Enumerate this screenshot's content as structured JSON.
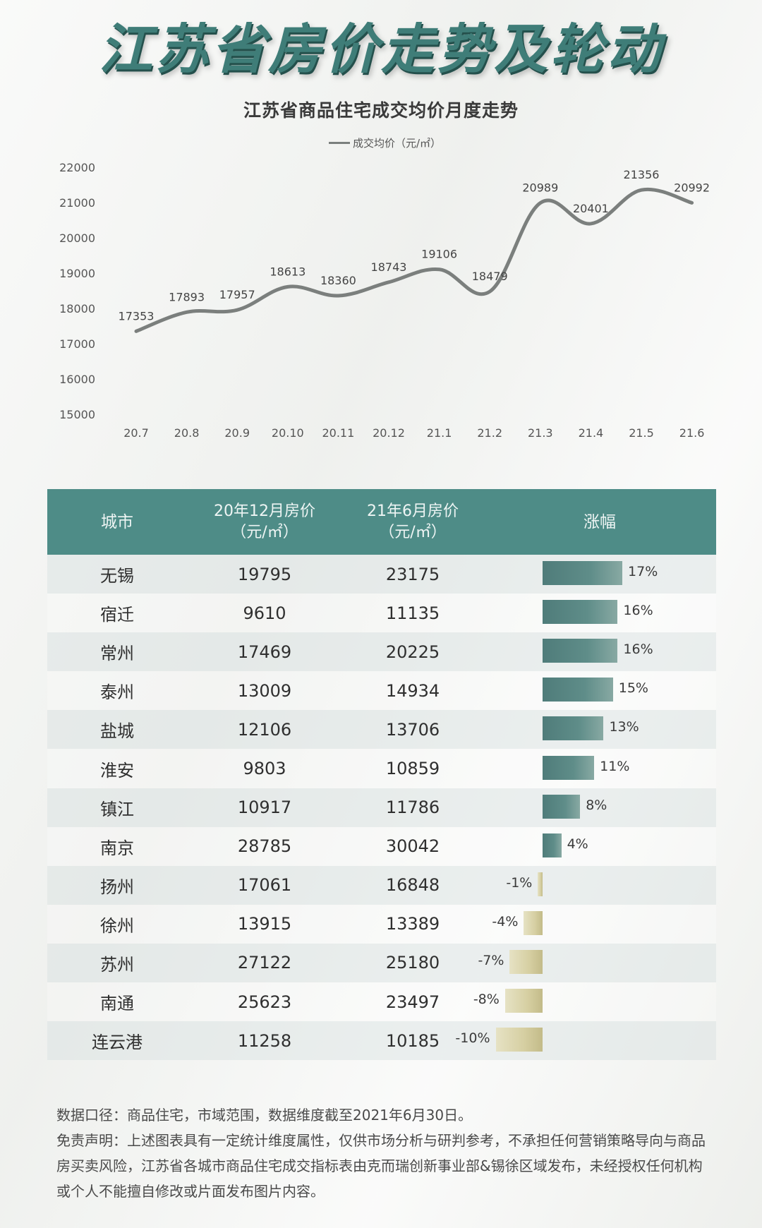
{
  "main_title": "江苏省房价走势及轮动",
  "chart_data": {
    "type": "line",
    "title": "江苏省商品住宅成交均价月度走势",
    "series": [
      {
        "name": "成交均价（元/㎡）",
        "values": [
          17353,
          17893,
          17957,
          18613,
          18360,
          18743,
          19106,
          18479,
          20989,
          20401,
          21356,
          20992
        ]
      }
    ],
    "categories": [
      "20.7",
      "20.8",
      "20.9",
      "20.10",
      "20.11",
      "20.12",
      "21.1",
      "21.2",
      "21.3",
      "21.4",
      "21.5",
      "21.6"
    ],
    "y_ticks": [
      "22000",
      "21000",
      "20000",
      "19000",
      "18000",
      "17000",
      "16000",
      "15000"
    ],
    "ylim": [
      15000,
      22000
    ],
    "grid": false,
    "legend_position": "top-center",
    "line_color": "#7b7f7d"
  },
  "table": {
    "headers": {
      "city": "城市",
      "dec20": "20年12月房价",
      "dec20_unit": "（元/㎡）",
      "jun21": "21年6月房价",
      "jun21_unit": "（元/㎡）",
      "rise": "涨幅"
    },
    "rows": [
      {
        "city": "无锡",
        "dec20": "19795",
        "jun21": "23175",
        "pct": "17%",
        "rise": 17
      },
      {
        "city": "宿迁",
        "dec20": "9610",
        "jun21": "11135",
        "pct": "16%",
        "rise": 16
      },
      {
        "city": "常州",
        "dec20": "17469",
        "jun21": "20225",
        "pct": "16%",
        "rise": 16
      },
      {
        "city": "泰州",
        "dec20": "13009",
        "jun21": "14934",
        "pct": "15%",
        "rise": 15
      },
      {
        "city": "盐城",
        "dec20": "12106",
        "jun21": "13706",
        "pct": "13%",
        "rise": 13
      },
      {
        "city": "淮安",
        "dec20": "9803",
        "jun21": "10859",
        "pct": "11%",
        "rise": 11
      },
      {
        "city": "镇江",
        "dec20": "10917",
        "jun21": "11786",
        "pct": "8%",
        "rise": 8
      },
      {
        "city": "南京",
        "dec20": "28785",
        "jun21": "30042",
        "pct": "4%",
        "rise": 4
      },
      {
        "city": "扬州",
        "dec20": "17061",
        "jun21": "16848",
        "pct": "-1%",
        "rise": -1
      },
      {
        "city": "徐州",
        "dec20": "13915",
        "jun21": "13389",
        "pct": "-4%",
        "rise": -4
      },
      {
        "city": "苏州",
        "dec20": "27122",
        "jun21": "25180",
        "pct": "-7%",
        "rise": -7
      },
      {
        "city": "南通",
        "dec20": "25623",
        "jun21": "23497",
        "pct": "-8%",
        "rise": -8
      },
      {
        "city": "连云港",
        "dec20": "11258",
        "jun21": "10185",
        "pct": "-10%",
        "rise": -10
      }
    ],
    "header_color": "#4e8c87",
    "positive_bar_color": "#5f8d89",
    "negative_bar_color": "#d6cfa2"
  },
  "notes": {
    "line1": "数据口径：商品住宅，市域范围，数据维度截至2021年6月30日。",
    "line2": "免责声明：上述图表具有一定统计维度属性，仅供市场分析与研判参考，不承担任何营销策略导向与商品房买卖风险，江苏省各城市商品住宅成交指标表由克而瑞创新事业部&锡徐区域发布，未经授权任何机构或个人不能擅自修改或片面发布图片内容。"
  }
}
